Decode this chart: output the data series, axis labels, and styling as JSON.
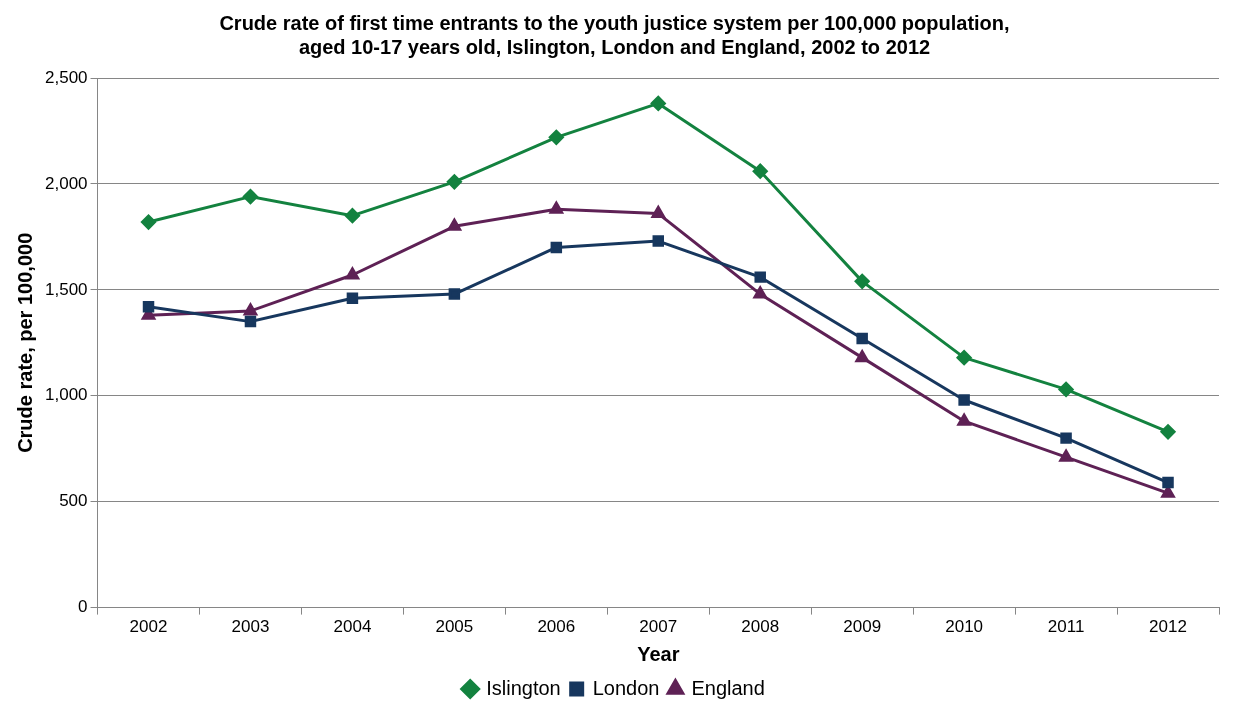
{
  "chart_data": {
    "type": "line",
    "title": "Crude rate of first time entrants to the youth justice system per 100,000 population,\naged 10-17 years old, Islington, London and England, 2002 to 2012",
    "xlabel": "Year",
    "ylabel": "Crude rate, per 100,000",
    "categories": [
      "2002",
      "2003",
      "2004",
      "2005",
      "2006",
      "2007",
      "2008",
      "2009",
      "2010",
      "2011",
      "2012"
    ],
    "series": [
      {
        "name": "Islington",
        "color": "#13823f",
        "marker": "diamond",
        "values": [
          1820,
          1940,
          1850,
          2010,
          2220,
          2380,
          2060,
          1540,
          1180,
          1030,
          830
        ]
      },
      {
        "name": "London",
        "color": "#17375e",
        "marker": "square",
        "values": [
          1420,
          1350,
          1460,
          1480,
          1700,
          1730,
          1560,
          1270,
          980,
          800,
          590
        ]
      },
      {
        "name": "England",
        "color": "#5e2155",
        "marker": "triangle",
        "values": [
          1380,
          1400,
          1570,
          1800,
          1880,
          1860,
          1480,
          1180,
          880,
          710,
          540
        ]
      }
    ],
    "ylim": [
      0,
      2500
    ],
    "yticks": [
      0,
      500,
      {
        "value": 1000,
        "label": "1,000"
      },
      {
        "value": 1500,
        "label": "1,500"
      },
      {
        "value": 2000,
        "label": "2,000"
      },
      {
        "value": 2500,
        "label": "2,500"
      }
    ],
    "grid": "y",
    "legend": "bottom",
    "line_style": "solid"
  }
}
